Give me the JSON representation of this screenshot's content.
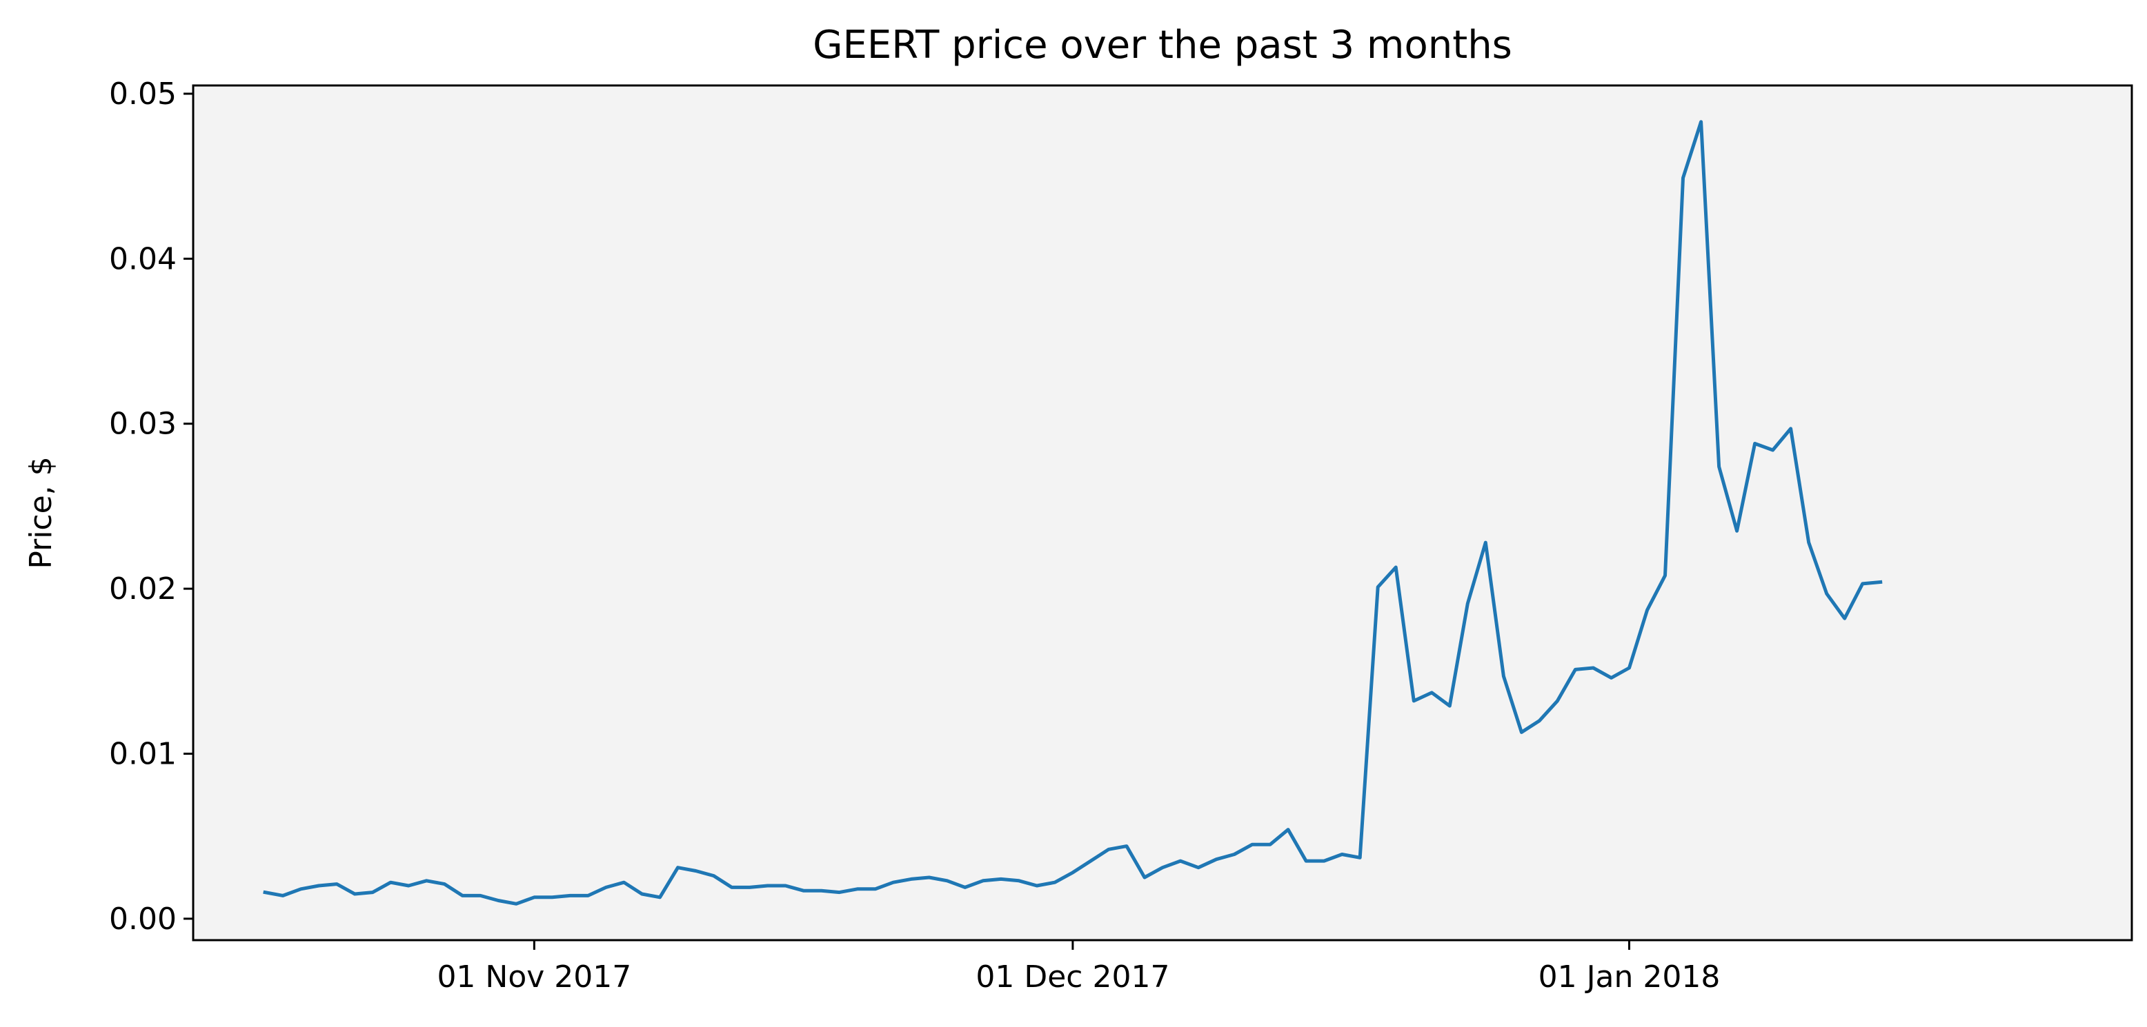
{
  "chart_data": {
    "type": "line",
    "title": "GEERT price over the past 3 months",
    "xlabel": "",
    "ylabel": "Price, $",
    "x_start": "2017-10-17",
    "x_step": "1 day",
    "xlim": [
      "2017-10-13",
      "2018-01-29"
    ],
    "ylim": [
      -0.0013,
      0.0505
    ],
    "x_ticks": [
      {
        "date": "2017-11-01",
        "label": "01 Nov 2017"
      },
      {
        "date": "2017-12-01",
        "label": "01 Dec 2017"
      },
      {
        "date": "2018-01-01",
        "label": "01 Jan 2018"
      }
    ],
    "y_ticks": [
      {
        "value": 0.0,
        "label": "0.00"
      },
      {
        "value": 0.01,
        "label": "0.01"
      },
      {
        "value": 0.02,
        "label": "0.02"
      },
      {
        "value": 0.03,
        "label": "0.03"
      },
      {
        "value": 0.04,
        "label": "0.04"
      },
      {
        "value": 0.05,
        "label": "0.05"
      }
    ],
    "grid": false,
    "legend": "none",
    "plot_background": "#f3f3f3",
    "series": [
      {
        "color": "#1f77b4",
        "values": [
          0.0016,
          0.0014,
          0.0018,
          0.002,
          0.0021,
          0.0015,
          0.0016,
          0.0022,
          0.002,
          0.0023,
          0.0021,
          0.0014,
          0.0014,
          0.0011,
          0.0009,
          0.0013,
          0.0013,
          0.0014,
          0.0014,
          0.0019,
          0.0022,
          0.0015,
          0.0013,
          0.0031,
          0.0029,
          0.0026,
          0.0019,
          0.0019,
          0.002,
          0.002,
          0.0017,
          0.0017,
          0.0016,
          0.0018,
          0.0018,
          0.0022,
          0.0024,
          0.0025,
          0.0023,
          0.0019,
          0.0023,
          0.0024,
          0.0023,
          0.002,
          0.0022,
          0.0028,
          0.0035,
          0.0042,
          0.0044,
          0.0025,
          0.0031,
          0.0035,
          0.0031,
          0.0036,
          0.0039,
          0.0045,
          0.0045,
          0.0054,
          0.0035,
          0.0035,
          0.0039,
          0.0037,
          0.0201,
          0.0213,
          0.0132,
          0.0137,
          0.0129,
          0.0191,
          0.0228,
          0.0147,
          0.0113,
          0.012,
          0.0132,
          0.0151,
          0.0152,
          0.0146,
          0.0152,
          0.0187,
          0.0208,
          0.0449,
          0.0483,
          0.0274,
          0.0235,
          0.0288,
          0.0284,
          0.0297,
          0.0228,
          0.0197,
          0.0182,
          0.0203,
          0.0204
        ]
      }
    ]
  }
}
